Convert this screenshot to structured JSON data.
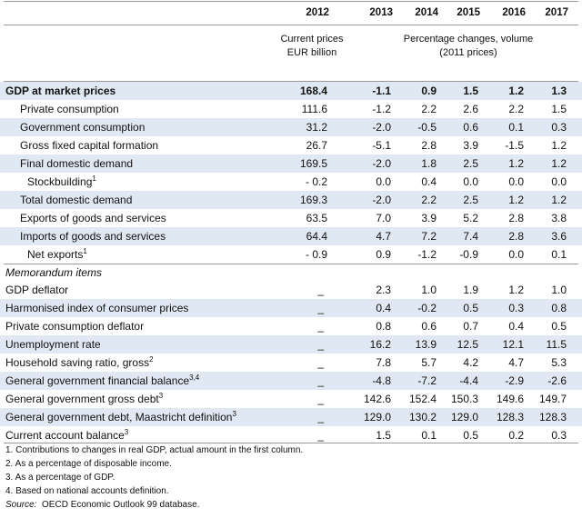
{
  "years": [
    "2012",
    "2013",
    "2014",
    "2015",
    "2016",
    "2017"
  ],
  "subheader": {
    "current_prices_line1": "Current prices",
    "current_prices_line2": "EUR billion",
    "pct_changes_line1": "Percentage changes, volume",
    "pct_changes_line2": "(2011 prices)"
  },
  "main_rows": [
    {
      "label": "GDP at market prices",
      "sup": "",
      "values": [
        "168.4",
        "-1.1",
        "0.9",
        "1.5",
        "1.2",
        "1.3"
      ]
    },
    {
      "label": "Private consumption",
      "sup": "",
      "values": [
        "111.6",
        "-1.2",
        "2.2",
        "2.6",
        "2.2",
        "1.5"
      ]
    },
    {
      "label": "Government consumption",
      "sup": "",
      "values": [
        "31.2",
        "-2.0",
        "-0.5",
        "0.6",
        "0.1",
        "0.3"
      ]
    },
    {
      "label": "Gross fixed capital formation",
      "sup": "",
      "values": [
        "26.7",
        "-5.1",
        "2.8",
        "3.9",
        "-1.5",
        "1.2"
      ]
    },
    {
      "label": "Final domestic demand",
      "sup": "",
      "values": [
        "169.5",
        "-2.0",
        "1.8",
        "2.5",
        "1.2",
        "1.2"
      ]
    },
    {
      "label": "Stockbuilding",
      "sup": "1",
      "values": [
        "- 0.2",
        "0.0",
        "0.4",
        "0.0",
        "0.0",
        "0.0"
      ]
    },
    {
      "label": "Total domestic demand",
      "sup": "",
      "values": [
        "169.3",
        "-2.0",
        "2.2",
        "2.5",
        "1.2",
        "1.2"
      ]
    },
    {
      "label": "Exports of goods and services",
      "sup": "",
      "values": [
        "63.5",
        "7.0",
        "3.9",
        "5.2",
        "2.8",
        "3.8"
      ]
    },
    {
      "label": "Imports of goods and services",
      "sup": "",
      "values": [
        "64.4",
        "4.7",
        "7.2",
        "7.4",
        "2.8",
        "3.6"
      ]
    },
    {
      "label": "Net exports",
      "sup": "1",
      "values": [
        "- 0.9",
        "0.9",
        "-1.2",
        "-0.9",
        "0.0",
        "0.1"
      ]
    }
  ],
  "memorandum": {
    "heading": "Memorandum items",
    "rows": [
      {
        "label": "GDP deflator",
        "sup": "",
        "values": [
          "_",
          "2.3",
          "1.0",
          "1.9",
          "1.2",
          "1.0"
        ]
      },
      {
        "label": "Harmonised index of consumer prices",
        "sup": "",
        "values": [
          "_",
          "0.4",
          "-0.2",
          "0.5",
          "0.3",
          "0.8"
        ]
      },
      {
        "label": "Private consumption deflator",
        "sup": "",
        "values": [
          "_",
          "0.8",
          "0.6",
          "0.7",
          "0.4",
          "0.5"
        ]
      },
      {
        "label": "Unemployment rate",
        "sup": "",
        "values": [
          "_",
          "16.2",
          "13.9",
          "12.5",
          "12.1",
          "11.5"
        ]
      },
      {
        "label": "Household saving ratio, gross",
        "sup": "2",
        "values": [
          "_",
          "7.8",
          "5.7",
          "4.2",
          "4.7",
          "5.3"
        ]
      },
      {
        "label": "General government financial balance",
        "sup": "3,4",
        "values": [
          "_",
          "-4.8",
          "-7.2",
          "-4.4",
          "-2.9",
          "-2.6"
        ]
      },
      {
        "label": "General government gross debt",
        "sup": "3",
        "values": [
          "_",
          "142.6",
          "152.4",
          "150.3",
          "149.6",
          "149.7"
        ]
      },
      {
        "label": "General government debt, Maastricht definition",
        "sup": "3",
        "values": [
          "_",
          "129.0",
          "130.2",
          "129.0",
          "128.3",
          "128.3"
        ]
      },
      {
        "label": "Current account balance",
        "sup": "3",
        "values": [
          "_",
          "1.5",
          "0.1",
          "0.5",
          "0.2",
          "0.3"
        ]
      }
    ]
  },
  "footnotes": [
    "1. Contributions to changes in real GDP, actual amount in the first column.",
    "2. As a percentage of disposable income.",
    "3. As a percentage of GDP.",
    "4. Based on national accounts definition."
  ],
  "source": {
    "label": "Source:",
    "text": "OECD Economic Outlook 99 database."
  },
  "colors": {
    "band": "#dfe8f3",
    "rule": "#9a9a9a",
    "text": "#111111"
  }
}
